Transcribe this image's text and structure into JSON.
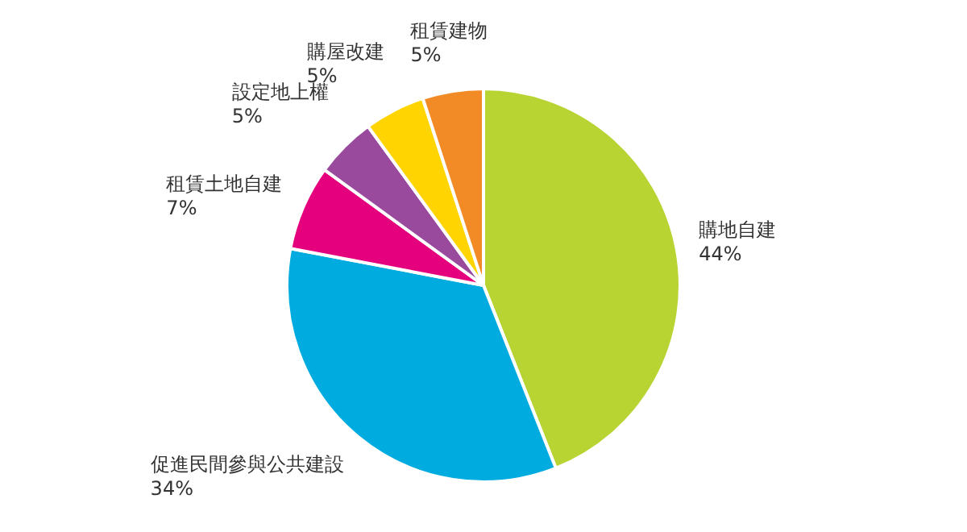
{
  "chart_data": {
    "type": "pie",
    "categories": [
      "購地自建",
      "促進民間參與公共建設",
      "租賃土地自建",
      "設定地上權",
      "購屋改建",
      "租賃建物"
    ],
    "values": [
      44,
      34,
      7,
      5,
      5,
      5
    ],
    "colors": [
      "#b8d432",
      "#00acdf",
      "#e5007d",
      "#9a4a9c",
      "#ffd400",
      "#f28b25"
    ],
    "value_labels": [
      "44%",
      "34%",
      "7%",
      "5%",
      "5%",
      "5%"
    ],
    "legend": false
  }
}
